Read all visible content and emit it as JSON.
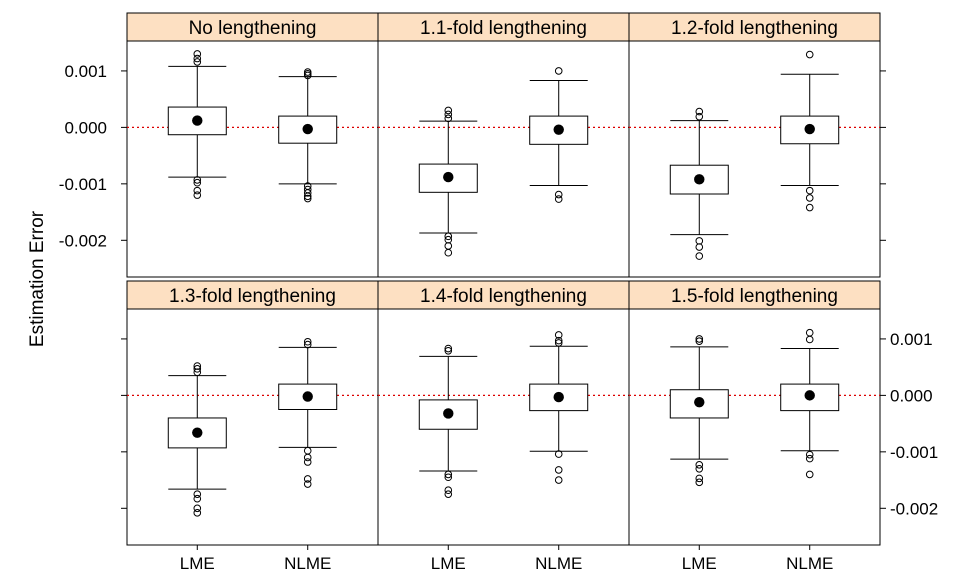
{
  "chart_data": {
    "type": "box",
    "ylabel": "Estimation Error",
    "xlabel": "",
    "categories": [
      "LME",
      "NLME"
    ],
    "ylim": [
      -0.00265,
      0.00153
    ],
    "y_ticks": [
      0.001,
      0.0,
      -0.001,
      -0.002
    ],
    "y_tick_labels": [
      "0.001",
      "0.000",
      "-0.001",
      "-0.002"
    ],
    "reference_line": {
      "y": 0.0,
      "color": "#dd0000",
      "style": "dotted"
    },
    "strip_color": "#fde0c2",
    "panels": [
      {
        "title": "No lengthening",
        "boxes": [
          {
            "category": "LME",
            "whisker_low": -0.00088,
            "q1": -0.00013,
            "median": 0.00012,
            "q3": 0.00036,
            "whisker_high": 0.00108,
            "outliers": [
              0.0013,
              0.00122,
              0.00116,
              -0.00093,
              -0.00098,
              -0.00112,
              -0.0012
            ]
          },
          {
            "category": "NLME",
            "whisker_low": -0.001,
            "q1": -0.00028,
            "median": -3e-05,
            "q3": 0.0002,
            "whisker_high": 0.0009,
            "outliers": [
              0.00098,
              0.00095,
              0.00092,
              -0.00104,
              -0.0011,
              -0.00116,
              -0.00122,
              -0.00126
            ]
          }
        ]
      },
      {
        "title": "1.1-fold lengthening",
        "boxes": [
          {
            "category": "LME",
            "whisker_low": -0.00187,
            "q1": -0.00115,
            "median": -0.00088,
            "q3": -0.00065,
            "whisker_high": 0.00011,
            "outliers": [
              0.0003,
              0.00023,
              0.00016,
              -0.00193,
              -0.00199,
              -0.0021,
              -0.00222
            ]
          },
          {
            "category": "NLME",
            "whisker_low": -0.00103,
            "q1": -0.0003,
            "median": -4e-05,
            "q3": 0.0002,
            "whisker_high": 0.00083,
            "outliers": [
              0.001,
              -0.00119,
              -0.00127
            ]
          }
        ]
      },
      {
        "title": "1.2-fold lengthening",
        "boxes": [
          {
            "category": "LME",
            "whisker_low": -0.0019,
            "q1": -0.00118,
            "median": -0.00092,
            "q3": -0.00067,
            "whisker_high": 0.00012,
            "outliers": [
              0.00028,
              0.00019,
              -0.00201,
              -0.00212,
              -0.00228
            ]
          },
          {
            "category": "NLME",
            "whisker_low": -0.00103,
            "q1": -0.00029,
            "median": -3e-05,
            "q3": 0.0002,
            "whisker_high": 0.00094,
            "outliers": [
              0.00129,
              -0.00112,
              -0.00125,
              -0.00142
            ]
          }
        ]
      },
      {
        "title": "1.3-fold lengthening",
        "boxes": [
          {
            "category": "LME",
            "whisker_low": -0.00166,
            "q1": -0.00093,
            "median": -0.00066,
            "q3": -0.0004,
            "whisker_high": 0.00035,
            "outliers": [
              0.00052,
              0.00047,
              0.00041,
              -0.00175,
              -0.00183,
              -0.002,
              -0.00208
            ]
          },
          {
            "category": "NLME",
            "whisker_low": -0.00092,
            "q1": -0.00025,
            "median": -2e-05,
            "q3": 0.0002,
            "whisker_high": 0.00085,
            "outliers": [
              0.00095,
              0.0009,
              -0.00098,
              -0.0011,
              -0.00118,
              -0.00148,
              -0.00157
            ]
          }
        ]
      },
      {
        "title": "1.4-fold lengthening",
        "boxes": [
          {
            "category": "LME",
            "whisker_low": -0.00134,
            "q1": -0.0006,
            "median": -0.00032,
            "q3": -8e-05,
            "whisker_high": 0.00069,
            "outliers": [
              0.00083,
              0.00079,
              -0.0014,
              -0.00145,
              -0.00168,
              -0.00175
            ]
          },
          {
            "category": "NLME",
            "whisker_low": -0.00099,
            "q1": -0.00027,
            "median": -3e-05,
            "q3": 0.0002,
            "whisker_high": 0.00087,
            "outliers": [
              0.00107,
              0.00097,
              0.00093,
              -0.00104,
              -0.00132,
              -0.0015
            ]
          }
        ]
      },
      {
        "title": "1.5-fold lengthening",
        "boxes": [
          {
            "category": "LME",
            "whisker_low": -0.00113,
            "q1": -0.0004,
            "median": -0.00012,
            "q3": 0.0001,
            "whisker_high": 0.00086,
            "outliers": [
              0.001,
              0.00096,
              -0.00123,
              -0.0013,
              -0.00147,
              -0.00154
            ]
          },
          {
            "category": "NLME",
            "whisker_low": -0.00098,
            "q1": -0.00027,
            "median": 0.0,
            "q3": 0.0002,
            "whisker_high": 0.00083,
            "outliers": [
              0.00111,
              0.00099,
              -0.00105,
              -0.00112,
              -0.0014
            ]
          }
        ]
      }
    ]
  }
}
